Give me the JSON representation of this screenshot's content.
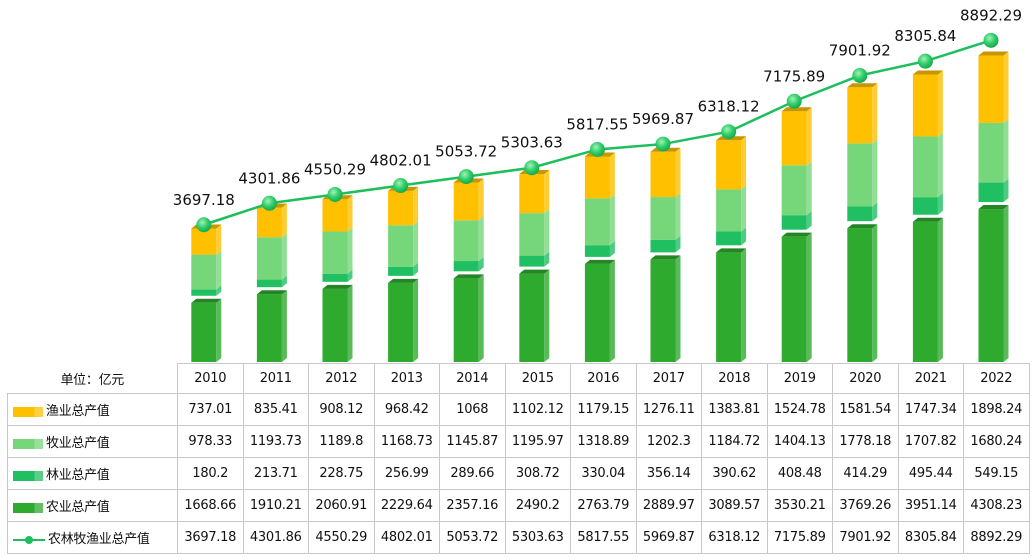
{
  "chart_data": {
    "type": "bar",
    "stacked": true,
    "unit_label": "单位：亿元",
    "categories": [
      "2010",
      "2011",
      "2012",
      "2013",
      "2014",
      "2015",
      "2016",
      "2017",
      "2018",
      "2019",
      "2020",
      "2021",
      "2022"
    ],
    "series": [
      {
        "name": "农业总产值",
        "kind": "bar",
        "color": "#2eaa2e",
        "values": [
          1668.66,
          1910.21,
          2060.91,
          2229.64,
          2357.16,
          2490.2,
          2763.79,
          2889.97,
          3089.57,
          3530.21,
          3769.26,
          3951.14,
          4308.23
        ]
      },
      {
        "name": "林业总产值",
        "kind": "bar",
        "color": "#1fbf62",
        "values": [
          180.2,
          213.71,
          228.75,
          256.99,
          289.66,
          308.72,
          330.04,
          356.14,
          390.62,
          408.48,
          414.29,
          495.44,
          549.15
        ]
      },
      {
        "name": "牧业总产值",
        "kind": "bar",
        "color": "#76d67a",
        "values": [
          978.33,
          1193.73,
          1189.8,
          1168.73,
          1145.87,
          1195.97,
          1318.89,
          1202.3,
          1184.72,
          1404.13,
          1778.18,
          1707.82,
          1680.24
        ]
      },
      {
        "name": "渔业总产值",
        "kind": "bar",
        "color": "#ffc000",
        "values": [
          737.01,
          835.41,
          908.12,
          968.42,
          1068,
          1102.12,
          1179.15,
          1276.11,
          1383.81,
          1524.78,
          1581.54,
          1747.34,
          1898.24
        ]
      },
      {
        "name": "农林牧渔业总产值",
        "kind": "line",
        "color": "#1dbf5c",
        "values": [
          3697.18,
          4301.86,
          4550.29,
          4802.01,
          5053.72,
          5303.63,
          5817.55,
          5969.87,
          6318.12,
          7175.89,
          7901.92,
          8305.84,
          8892.29
        ]
      }
    ],
    "data_labels": [
      "3697.18",
      "4301.86",
      "4550.29",
      "4802.01",
      "5053.72",
      "5303.63",
      "5817.55",
      "5969.87",
      "6318.12",
      "7175.89",
      "7901.92",
      "8305.84",
      "8892.29"
    ],
    "table_rows": [
      {
        "label": "渔业总产值",
        "swatch": "#ffc000",
        "legend": "bar",
        "cells": [
          "737.01",
          "835.41",
          "908.12",
          "968.42",
          "1068",
          "1102.12",
          "1179.15",
          "1276.11",
          "1383.81",
          "1524.78",
          "1581.54",
          "1747.34",
          "1898.24"
        ]
      },
      {
        "label": "牧业总产值",
        "swatch": "#76d67a",
        "legend": "bar",
        "cells": [
          "978.33",
          "1193.73",
          "1189.8",
          "1168.73",
          "1145.87",
          "1195.97",
          "1318.89",
          "1202.3",
          "1184.72",
          "1404.13",
          "1778.18",
          "1707.82",
          "1680.24"
        ]
      },
      {
        "label": "林业总产值",
        "swatch": "#1fbf62",
        "legend": "bar",
        "cells": [
          "180.2",
          "213.71",
          "228.75",
          "256.99",
          "289.66",
          "308.72",
          "330.04",
          "356.14",
          "390.62",
          "408.48",
          "414.29",
          "495.44",
          "549.15"
        ]
      },
      {
        "label": "农业总产值",
        "swatch": "#2eaa2e",
        "legend": "bar",
        "cells": [
          "1668.66",
          "1910.21",
          "2060.91",
          "2229.64",
          "2357.16",
          "2490.2",
          "2763.79",
          "2889.97",
          "3089.57",
          "3530.21",
          "3769.26",
          "3951.14",
          "4308.23"
        ]
      },
      {
        "label": "农林牧渔业总产值",
        "swatch": "#1dbf5c",
        "legend": "line",
        "cells": [
          "3697.18",
          "4301.86",
          "4550.29",
          "4802.01",
          "5053.72",
          "5303.63",
          "5817.55",
          "5969.87",
          "6318.12",
          "7175.89",
          "7901.92",
          "8305.84",
          "8892.29"
        ]
      }
    ],
    "title": "",
    "xlabel": "",
    "ylabel": "",
    "grid": false,
    "legend": "data-table-left"
  }
}
